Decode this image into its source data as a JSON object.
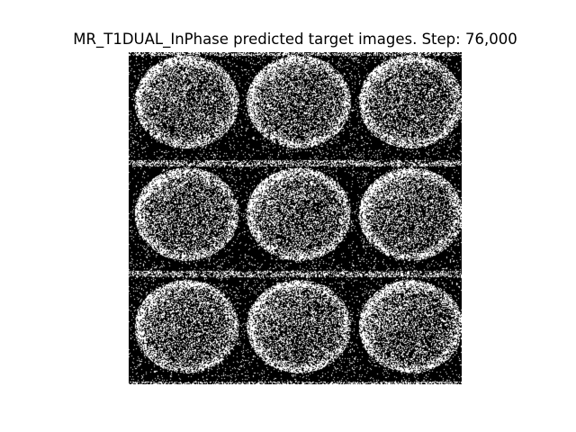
{
  "figure": {
    "title": "MR_T1DUAL_InPhase predicted target images. Step: 76,000"
  },
  "grid": {
    "rows": 3,
    "cols": 3,
    "tiles": [
      {
        "row": 1,
        "col": 1,
        "content": "predicted MR slice (noisy)"
      },
      {
        "row": 1,
        "col": 2,
        "content": "predicted MR slice (noisy)"
      },
      {
        "row": 1,
        "col": 3,
        "content": "predicted MR slice (noisy)"
      },
      {
        "row": 2,
        "col": 1,
        "content": "predicted MR slice (noisy)"
      },
      {
        "row": 2,
        "col": 2,
        "content": "predicted MR slice (noisy)"
      },
      {
        "row": 2,
        "col": 3,
        "content": "predicted MR slice (noisy)"
      },
      {
        "row": 3,
        "col": 1,
        "content": "predicted MR slice (noisy)"
      },
      {
        "row": 3,
        "col": 2,
        "content": "predicted MR slice (noisy)"
      },
      {
        "row": 3,
        "col": 3,
        "content": "predicted MR slice (noisy)"
      }
    ],
    "colors": {
      "background": "#000000",
      "foreground": "#ffffff"
    }
  }
}
